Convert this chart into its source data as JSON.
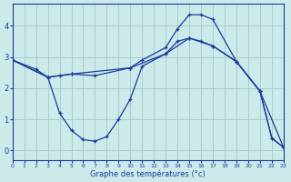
{
  "background_color": "#cceaea",
  "grid_color": "#aacccc",
  "line_color": "#1a3a9c",
  "xlabel": "Graphe des températures (°c)",
  "xlim": [
    0,
    23
  ],
  "ylim": [
    -0.3,
    4.7
  ],
  "yticks": [
    0,
    1,
    2,
    3,
    4
  ],
  "xticks": [
    0,
    1,
    2,
    3,
    4,
    5,
    6,
    7,
    8,
    9,
    10,
    11,
    12,
    13,
    14,
    15,
    16,
    17,
    18,
    19,
    20,
    21,
    22,
    23
  ],
  "series": [
    {
      "x": [
        0,
        2,
        3,
        4,
        5,
        10,
        11,
        13,
        14,
        15,
        16,
        17,
        19,
        21,
        22,
        23
      ],
      "y": [
        2.9,
        2.6,
        2.35,
        2.4,
        2.45,
        2.65,
        2.9,
        3.3,
        3.9,
        4.35,
        4.35,
        4.2,
        2.85,
        1.9,
        0.4,
        0.1
      ]
    },
    {
      "x": [
        0,
        3,
        4,
        5,
        6,
        7,
        8,
        9,
        10,
        11,
        13,
        14,
        15,
        16,
        17,
        19,
        21,
        22,
        23
      ],
      "y": [
        2.9,
        2.35,
        1.2,
        0.65,
        0.35,
        0.3,
        0.45,
        1.0,
        1.65,
        2.7,
        3.1,
        3.5,
        3.6,
        3.5,
        3.35,
        2.85,
        1.9,
        0.4,
        0.1
      ]
    },
    {
      "x": [
        0,
        3,
        5,
        7,
        10,
        13,
        15,
        17,
        19,
        21,
        23
      ],
      "y": [
        2.9,
        2.35,
        2.45,
        2.4,
        2.65,
        3.1,
        3.6,
        3.35,
        2.85,
        1.9,
        0.1
      ]
    }
  ]
}
